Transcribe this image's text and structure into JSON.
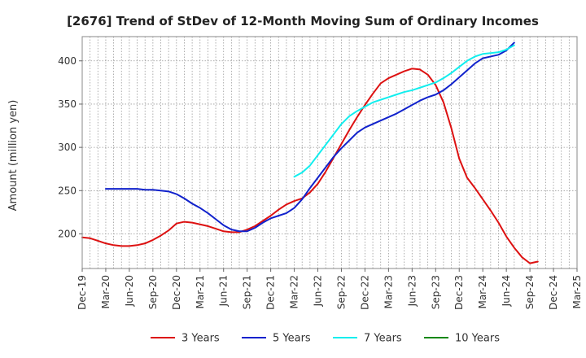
{
  "chart_data": {
    "type": "line",
    "title": "[2676]  Trend of StDev of 12-Month Moving Sum of Ordinary Incomes",
    "xlabel": "",
    "ylabel": "Amount (million yen)",
    "ylim": [
      160,
      428
    ],
    "yticks": [
      200,
      250,
      300,
      350,
      400
    ],
    "x_tick_labels": [
      "Dec-19",
      "Mar-20",
      "Jun-20",
      "Sep-20",
      "Dec-20",
      "Mar-21",
      "Jun-21",
      "Sep-21",
      "Dec-21",
      "Mar-22",
      "Jun-22",
      "Sep-22",
      "Dec-22",
      "Mar-23",
      "Jun-23",
      "Sep-23",
      "Dec-23",
      "Mar-24",
      "Jun-24",
      "Sep-24",
      "Dec-24",
      "Mar-25"
    ],
    "grid": true,
    "legend_position": "bottom",
    "series": [
      {
        "name": "3 Years",
        "color": "#dd1111",
        "points": [
          [
            0,
            196
          ],
          [
            1,
            195
          ],
          [
            2,
            192
          ],
          [
            3,
            189
          ],
          [
            4,
            187
          ],
          [
            5,
            186
          ],
          [
            6,
            186
          ],
          [
            7,
            187
          ],
          [
            8,
            189
          ],
          [
            9,
            193
          ],
          [
            10,
            198
          ],
          [
            11,
            204
          ],
          [
            12,
            212
          ],
          [
            13,
            214
          ],
          [
            14,
            213
          ],
          [
            15,
            211
          ],
          [
            16,
            209
          ],
          [
            17,
            206
          ],
          [
            18,
            203
          ],
          [
            19,
            202
          ],
          [
            20,
            202
          ],
          [
            21,
            205
          ],
          [
            22,
            209
          ],
          [
            23,
            215
          ],
          [
            24,
            221
          ],
          [
            25,
            228
          ],
          [
            26,
            234
          ],
          [
            27,
            238
          ],
          [
            28,
            241
          ],
          [
            29,
            248
          ],
          [
            30,
            258
          ],
          [
            31,
            272
          ],
          [
            32,
            288
          ],
          [
            33,
            304
          ],
          [
            34,
            320
          ],
          [
            35,
            335
          ],
          [
            36,
            349
          ],
          [
            37,
            362
          ],
          [
            38,
            374
          ],
          [
            39,
            380
          ],
          [
            40,
            384
          ],
          [
            41,
            388
          ],
          [
            42,
            391
          ],
          [
            43,
            390
          ],
          [
            44,
            384
          ],
          [
            45,
            372
          ],
          [
            46,
            352
          ],
          [
            47,
            322
          ],
          [
            48,
            287
          ],
          [
            49,
            265
          ],
          [
            50,
            253
          ],
          [
            51,
            240
          ],
          [
            52,
            227
          ],
          [
            53,
            213
          ],
          [
            54,
            197
          ],
          [
            55,
            184
          ],
          [
            56,
            173
          ],
          [
            57,
            166
          ],
          [
            58,
            168
          ]
        ]
      },
      {
        "name": "5 Years",
        "color": "#1122cc",
        "points": [
          [
            3,
            252
          ],
          [
            4,
            252
          ],
          [
            5,
            252
          ],
          [
            6,
            252
          ],
          [
            7,
            252
          ],
          [
            8,
            251
          ],
          [
            9,
            251
          ],
          [
            10,
            250
          ],
          [
            11,
            249
          ],
          [
            12,
            246
          ],
          [
            13,
            241
          ],
          [
            14,
            235
          ],
          [
            15,
            230
          ],
          [
            16,
            224
          ],
          [
            17,
            217
          ],
          [
            18,
            210
          ],
          [
            19,
            205
          ],
          [
            20,
            203
          ],
          [
            21,
            203
          ],
          [
            22,
            207
          ],
          [
            23,
            213
          ],
          [
            24,
            218
          ],
          [
            25,
            221
          ],
          [
            26,
            224
          ],
          [
            27,
            230
          ],
          [
            28,
            240
          ],
          [
            29,
            253
          ],
          [
            30,
            265
          ],
          [
            31,
            277
          ],
          [
            32,
            289
          ],
          [
            33,
            299
          ],
          [
            34,
            308
          ],
          [
            35,
            317
          ],
          [
            36,
            323
          ],
          [
            37,
            327
          ],
          [
            38,
            331
          ],
          [
            39,
            335
          ],
          [
            40,
            339
          ],
          [
            41,
            344
          ],
          [
            42,
            349
          ],
          [
            43,
            354
          ],
          [
            44,
            358
          ],
          [
            45,
            361
          ],
          [
            46,
            366
          ],
          [
            47,
            373
          ],
          [
            48,
            381
          ],
          [
            49,
            389
          ],
          [
            50,
            397
          ],
          [
            51,
            403
          ],
          [
            52,
            405
          ],
          [
            53,
            407
          ],
          [
            54,
            412
          ],
          [
            55,
            421
          ]
        ]
      },
      {
        "name": "7 Years",
        "color": "#11eeee",
        "points": [
          [
            27,
            266
          ],
          [
            28,
            271
          ],
          [
            29,
            279
          ],
          [
            30,
            291
          ],
          [
            31,
            303
          ],
          [
            32,
            315
          ],
          [
            33,
            327
          ],
          [
            34,
            336
          ],
          [
            35,
            342
          ],
          [
            36,
            347
          ],
          [
            37,
            352
          ],
          [
            38,
            355
          ],
          [
            39,
            358
          ],
          [
            40,
            361
          ],
          [
            41,
            364
          ],
          [
            42,
            366
          ],
          [
            43,
            369
          ],
          [
            44,
            372
          ],
          [
            45,
            375
          ],
          [
            46,
            380
          ],
          [
            47,
            386
          ],
          [
            48,
            393
          ],
          [
            49,
            400
          ],
          [
            50,
            405
          ],
          [
            51,
            408
          ],
          [
            52,
            409
          ],
          [
            53,
            410
          ],
          [
            54,
            413
          ],
          [
            55,
            418
          ]
        ]
      },
      {
        "name": "10 Years",
        "color": "#118811",
        "points": []
      }
    ]
  }
}
